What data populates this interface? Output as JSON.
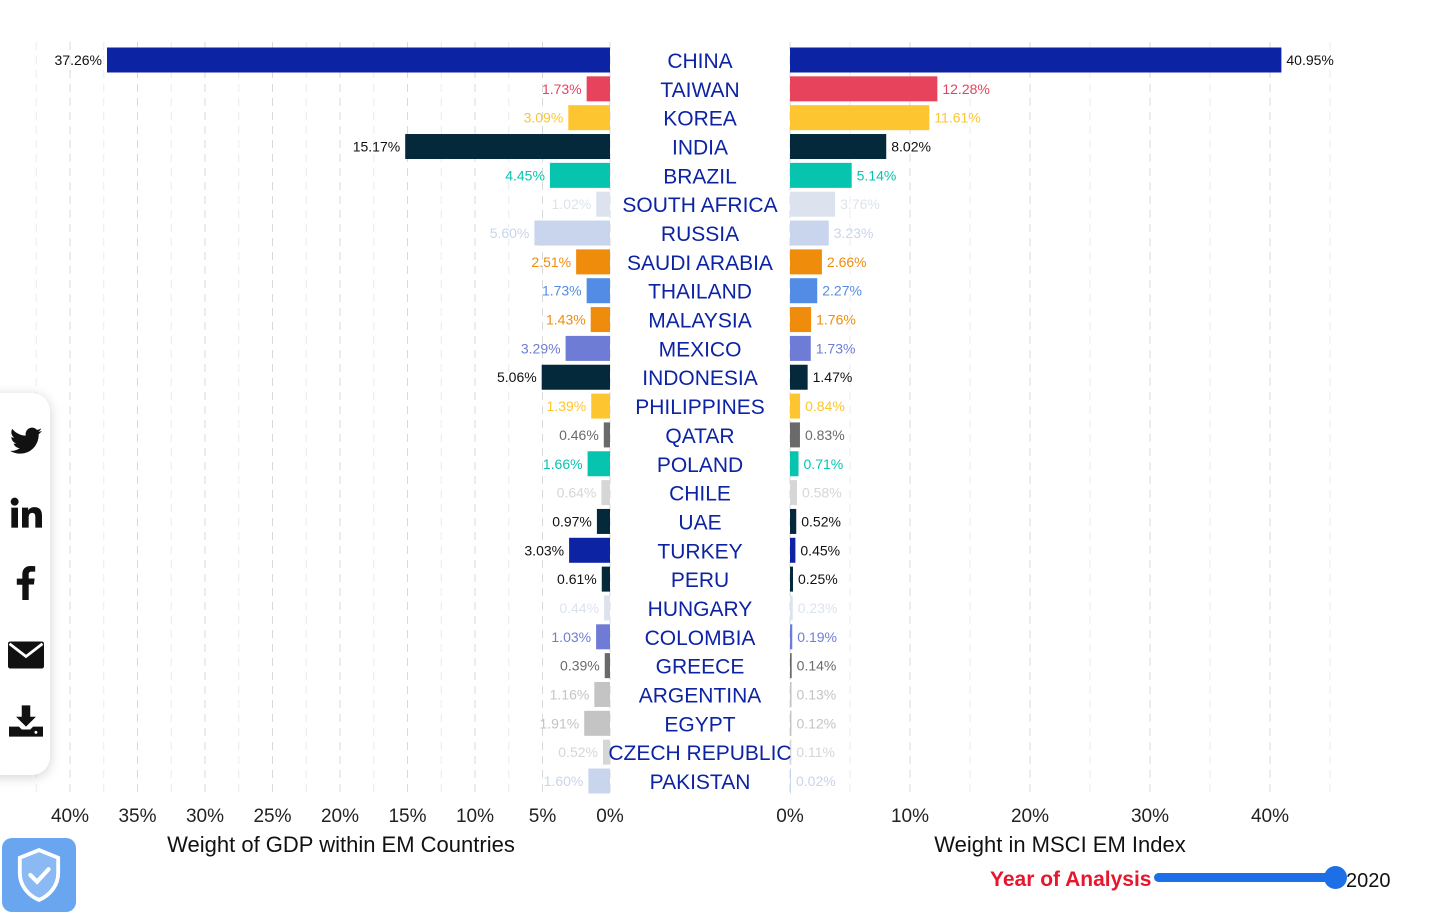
{
  "chart_data": {
    "type": "bar",
    "categories": [
      "CHINA",
      "TAIWAN",
      "KOREA",
      "INDIA",
      "BRAZIL",
      "SOUTH AFRICA",
      "RUSSIA",
      "SAUDI ARABIA",
      "THAILAND",
      "MALAYSIA",
      "MEXICO",
      "INDONESIA",
      "PHILIPPINES",
      "QATAR",
      "POLAND",
      "CHILE",
      "UAE",
      "TURKEY",
      "PERU",
      "HUNGARY",
      "COLOMBIA",
      "GREECE",
      "ARGENTINA",
      "EGYPT",
      "CZECH REPUBLIC",
      "PAKISTAN"
    ],
    "colors": [
      "#0c23a3",
      "#e8435d",
      "#fdc530",
      "#04293a",
      "#07c4ae",
      "#dde3ee",
      "#c9d4ed",
      "#f08c0c",
      "#528ce4",
      "#f08c0c",
      "#6e7cd6",
      "#04293a",
      "#fdc530",
      "#6a6a6a",
      "#07c4ae",
      "#d6d6d6",
      "#04293a",
      "#0c23a3",
      "#04293a",
      "#dde3ee",
      "#6e7cd6",
      "#6a6a6a",
      "#c4c4c4",
      "#c4c4c4",
      "#d6d6d6",
      "#c9d4ed"
    ],
    "series": [
      {
        "values": [
          37.26,
          1.73,
          3.09,
          15.17,
          4.45,
          1.02,
          5.6,
          2.51,
          1.73,
          1.43,
          3.29,
          5.06,
          1.39,
          0.46,
          1.66,
          0.64,
          0.97,
          3.03,
          0.61,
          0.44,
          1.03,
          0.39,
          1.16,
          1.91,
          0.52,
          1.6
        ],
        "labels": [
          "37.26%",
          "1.73%",
          "3.09%",
          "15.17%",
          "4.45%",
          "1.02%",
          "5.60%",
          "2.51%",
          "1.73%",
          "1.43%",
          "3.29%",
          "5.06%",
          "1.39%",
          "0.46%",
          "1.66%",
          "0.64%",
          "0.97%",
          "3.03%",
          "0.61%",
          "0.44%",
          "1.03%",
          "0.39%",
          "1.16%",
          "1.91%",
          "0.52%",
          "1.60%"
        ]
      },
      {
        "values": [
          40.95,
          12.28,
          11.61,
          8.02,
          5.14,
          3.76,
          3.23,
          2.66,
          2.27,
          1.76,
          1.73,
          1.47,
          0.84,
          0.83,
          0.71,
          0.58,
          0.52,
          0.45,
          0.25,
          0.23,
          0.19,
          0.14,
          0.13,
          0.12,
          0.11,
          0.02
        ],
        "labels": [
          "40.95%",
          "12.28%",
          "11.61%",
          "8.02%",
          "5.14%",
          "3.76%",
          "3.23%",
          "2.66%",
          "2.27%",
          "1.76%",
          "1.73%",
          "1.47%",
          "0.84%",
          "0.83%",
          "0.71%",
          "0.58%",
          "0.52%",
          "0.45%",
          "0.25%",
          "0.23%",
          "0.19%",
          "0.14%",
          "0.13%",
          "0.12%",
          "0.11%",
          "0.02%"
        ]
      }
    ],
    "left_xlabel": "Weight of GDP within EM Countries",
    "right_xlabel": "Weight in MSCI EM Index",
    "left_xlim": [
      40,
      0
    ],
    "right_xlim": [
      0,
      45
    ],
    "left_ticks": [
      "40%",
      "35%",
      "30%",
      "25%",
      "20%",
      "15%",
      "10%",
      "5%",
      "0%"
    ],
    "left_tick_values": [
      40,
      35,
      30,
      25,
      20,
      15,
      10,
      5,
      0
    ],
    "right_ticks": [
      "0%",
      "10%",
      "20%",
      "30%",
      "40%"
    ],
    "right_tick_values": [
      0,
      10,
      20,
      30,
      40
    ],
    "grid": true,
    "category_label_color": "#0c23a3"
  },
  "share": {
    "icons": [
      "twitter-icon",
      "linkedin-icon",
      "facebook-icon",
      "email-icon",
      "download-icon"
    ]
  },
  "year_control": {
    "label": "Year of Analysis",
    "value": "2020"
  },
  "colors": {
    "accent": "#1c6fe6",
    "year_label": "#e8162c",
    "badge": "#6aa6f0"
  }
}
